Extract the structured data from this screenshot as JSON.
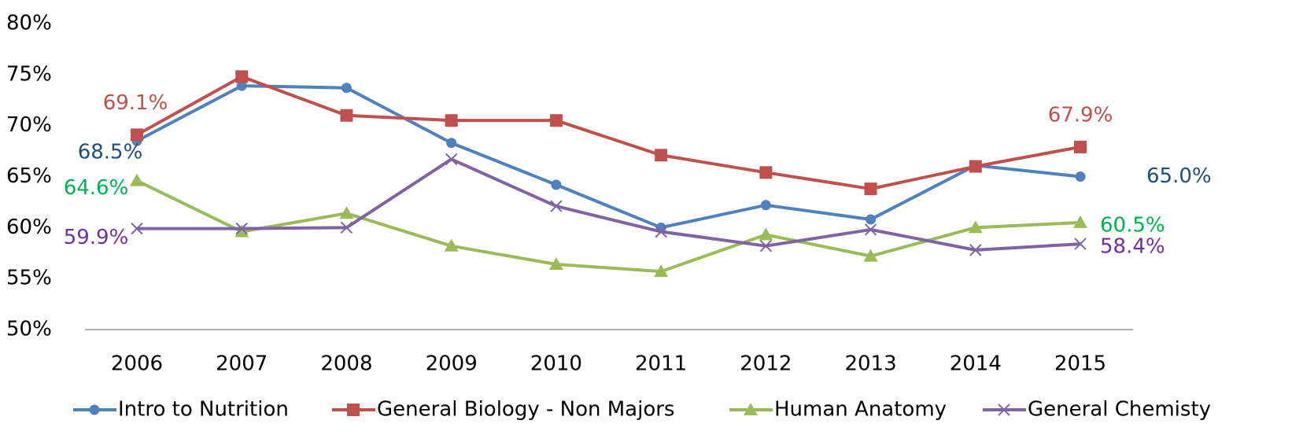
{
  "chart_data": {
    "type": "line",
    "categories": [
      "2006",
      "2007",
      "2008",
      "2009",
      "2010",
      "2011",
      "2012",
      "2013",
      "2014",
      "2015"
    ],
    "ylim": [
      50,
      80
    ],
    "yticks": [
      {
        "value": 50,
        "label": "50%"
      },
      {
        "value": 55,
        "label": "55%"
      },
      {
        "value": 60,
        "label": "60%"
      },
      {
        "value": 65,
        "label": "65%"
      },
      {
        "value": 70,
        "label": "70%"
      },
      {
        "value": 75,
        "label": "75%"
      },
      {
        "value": 80,
        "label": "80%"
      }
    ],
    "legend": "bottom",
    "series": [
      {
        "name": "Intro to Nutrition",
        "color": "#4f81bd",
        "marker": "circle",
        "label_color": "#1f4e79",
        "values": [
          68.5,
          73.9,
          73.7,
          68.3,
          64.2,
          60.0,
          62.2,
          60.8,
          66.1,
          65.0
        ],
        "value_labels": [
          "68.5%",
          null,
          null,
          null,
          null,
          null,
          null,
          null,
          null,
          "65.0%"
        ]
      },
      {
        "name": "General Biology - Non Majors",
        "color": "#c0504d",
        "marker": "square",
        "label_color": "#c0504d",
        "values": [
          69.1,
          74.8,
          71.0,
          70.5,
          70.5,
          67.1,
          65.4,
          63.8,
          66.0,
          67.9
        ],
        "value_labels": [
          "69.1%",
          null,
          null,
          null,
          null,
          null,
          null,
          null,
          null,
          "67.9%"
        ]
      },
      {
        "name": "Human Anatomy",
        "color": "#9bbb59",
        "marker": "triangle",
        "label_color": "#00b050",
        "values": [
          64.6,
          59.6,
          61.4,
          58.2,
          56.4,
          55.7,
          59.3,
          57.2,
          60.0,
          60.5
        ],
        "value_labels": [
          "64.6%",
          null,
          null,
          null,
          null,
          null,
          null,
          null,
          null,
          "60.5%"
        ]
      },
      {
        "name": "General Chemisty",
        "color": "#8064a2",
        "marker": "x",
        "label_color": "#7030a0",
        "values": [
          59.9,
          59.9,
          60.0,
          66.7,
          62.1,
          59.6,
          58.2,
          59.8,
          57.8,
          58.4
        ],
        "value_labels": [
          "59.9%",
          null,
          null,
          null,
          null,
          null,
          null,
          null,
          null,
          "58.4%"
        ]
      }
    ]
  }
}
